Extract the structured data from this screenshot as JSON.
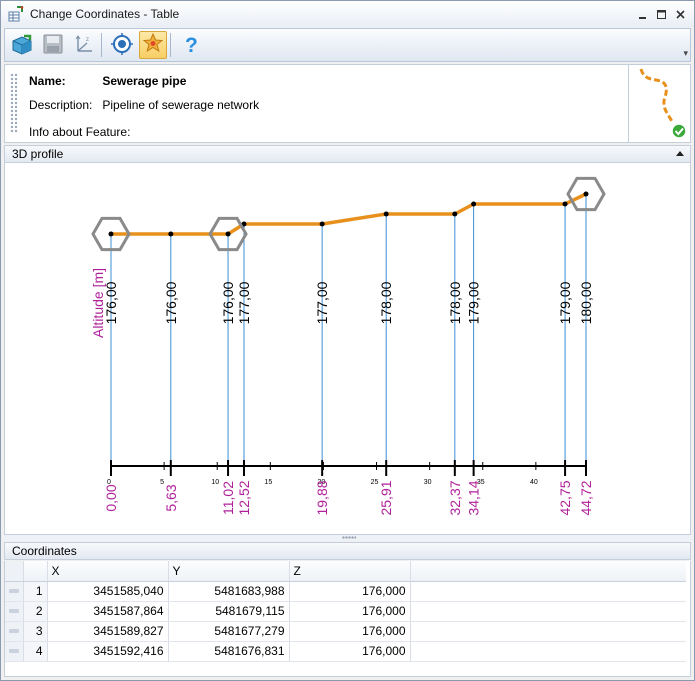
{
  "window": {
    "title": "Change Coordinates - Table",
    "controls": [
      "minimize-icon",
      "maximize-icon",
      "close-icon"
    ]
  },
  "toolbar": {
    "buttons": [
      "open-icon",
      "save-icon",
      "axes-icon",
      "target-icon",
      "snap-star-icon",
      "help-icon"
    ],
    "active": "snap-star-icon"
  },
  "feature": {
    "name_label": "Name:",
    "name_value": "Sewerage pipe",
    "description_label": "Description:",
    "description_value": "Pipeline of sewerage network",
    "info_label": "Info about Feature:",
    "info_value": ""
  },
  "profile": {
    "header": "3D profile",
    "vertical_axis_label": "Altitude [m]"
  },
  "chart_data": {
    "type": "line",
    "xlabel": "",
    "ylabel": "Altitude [m]",
    "x": [
      0.0,
      5.63,
      11.02,
      12.52,
      19.88,
      25.91,
      32.37,
      34.14,
      42.75,
      44.72
    ],
    "x_labels": [
      "0,00",
      "5,63",
      "11,02",
      "12,52",
      "19,88",
      "25,91",
      "32,37",
      "34,14",
      "42,75",
      "44,72"
    ],
    "y": [
      176.0,
      176.0,
      176.0,
      177.0,
      177.0,
      178.0,
      178.0,
      179.0,
      179.0,
      180.0
    ],
    "y_labels": [
      "176,00",
      "176,00",
      "176,00",
      "177,00",
      "177,00",
      "178,00",
      "178,00",
      "179,00",
      "179,00",
      "180,00"
    ],
    "hexagon_markers_at": [
      0.0,
      11.02,
      44.72
    ],
    "xlim": [
      0,
      44.72
    ],
    "axis_ticks": [
      0,
      5,
      10,
      15,
      20,
      25,
      30,
      35,
      40
    ],
    "axis_tick_labels": [
      "0",
      "5",
      "10",
      "15",
      "20",
      "25",
      "30",
      "35",
      "40"
    ],
    "line_color": "#e8901c",
    "label_color": "#b0209a",
    "drop_line_color": "#3a8fd6",
    "marker_color": "#8a8a8a"
  },
  "coordinates": {
    "header": "Coordinates",
    "columns": [
      "X",
      "Y",
      "Z"
    ],
    "rows": [
      {
        "n": "1",
        "x": "3451585,040",
        "y": "5481683,988",
        "z": "176,000"
      },
      {
        "n": "2",
        "x": "3451587,864",
        "y": "5481679,115",
        "z": "176,000"
      },
      {
        "n": "3",
        "x": "3451589,827",
        "y": "5481677,279",
        "z": "176,000"
      },
      {
        "n": "4",
        "x": "3451592,416",
        "y": "5481676,831",
        "z": "176,000"
      }
    ]
  }
}
